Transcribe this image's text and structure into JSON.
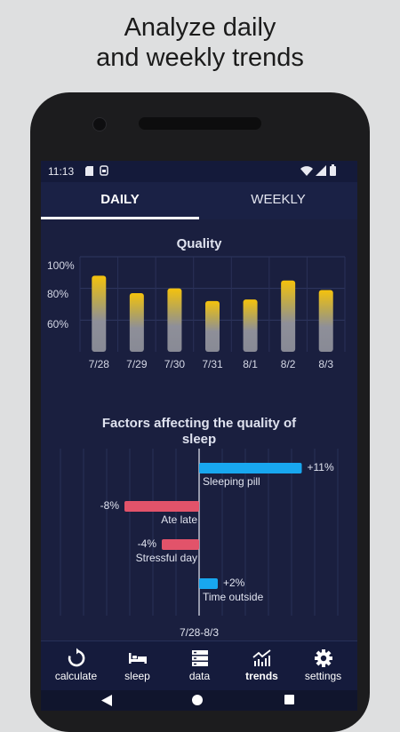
{
  "headline": {
    "line1": "Analyze daily",
    "line2": "and weekly trends"
  },
  "status_bar": {
    "time": "11:13",
    "icons": [
      "sd-card-icon",
      "sim-icon",
      "wifi-icon",
      "cell-signal-icon",
      "battery-icon"
    ]
  },
  "tabs": [
    {
      "label": "DAILY",
      "selected": true
    },
    {
      "label": "WEEKLY",
      "selected": false
    }
  ],
  "colors": {
    "screen_bg": "#1a1f3f",
    "bar_top": "#f4c20d",
    "bar_bottom": "#8e8f99",
    "positive": "#18a7ef",
    "negative": "#e2536a"
  },
  "chart_data": [
    {
      "type": "bar",
      "title": "Quality",
      "categories": [
        "7/28",
        "7/29",
        "7/30",
        "7/31",
        "8/1",
        "8/2",
        "8/3"
      ],
      "values": [
        88,
        77,
        80,
        72,
        73,
        85,
        79
      ],
      "yticks": [
        "100%",
        "80%",
        "60%"
      ],
      "ylim": [
        40,
        100
      ],
      "grid": true
    },
    {
      "type": "bar",
      "title": "Factors affecting the quality of sleep",
      "orientation": "horizontal",
      "categories": [
        "Sleeping pill",
        "Ate late",
        "Stressful day",
        "Time outside"
      ],
      "values": [
        11,
        -8,
        -4,
        2
      ],
      "value_labels": [
        "+11%",
        "-8%",
        "-4%",
        "+2%"
      ],
      "range_label": "7/28-8/3",
      "grid": true
    }
  ],
  "bottom_nav": [
    {
      "label": "calculate",
      "icon": "refresh-icon"
    },
    {
      "label": "sleep",
      "icon": "bed-icon"
    },
    {
      "label": "data",
      "icon": "database-icon"
    },
    {
      "label": "trends",
      "icon": "trend-icon",
      "active": true
    },
    {
      "label": "settings",
      "icon": "gear-icon"
    }
  ]
}
